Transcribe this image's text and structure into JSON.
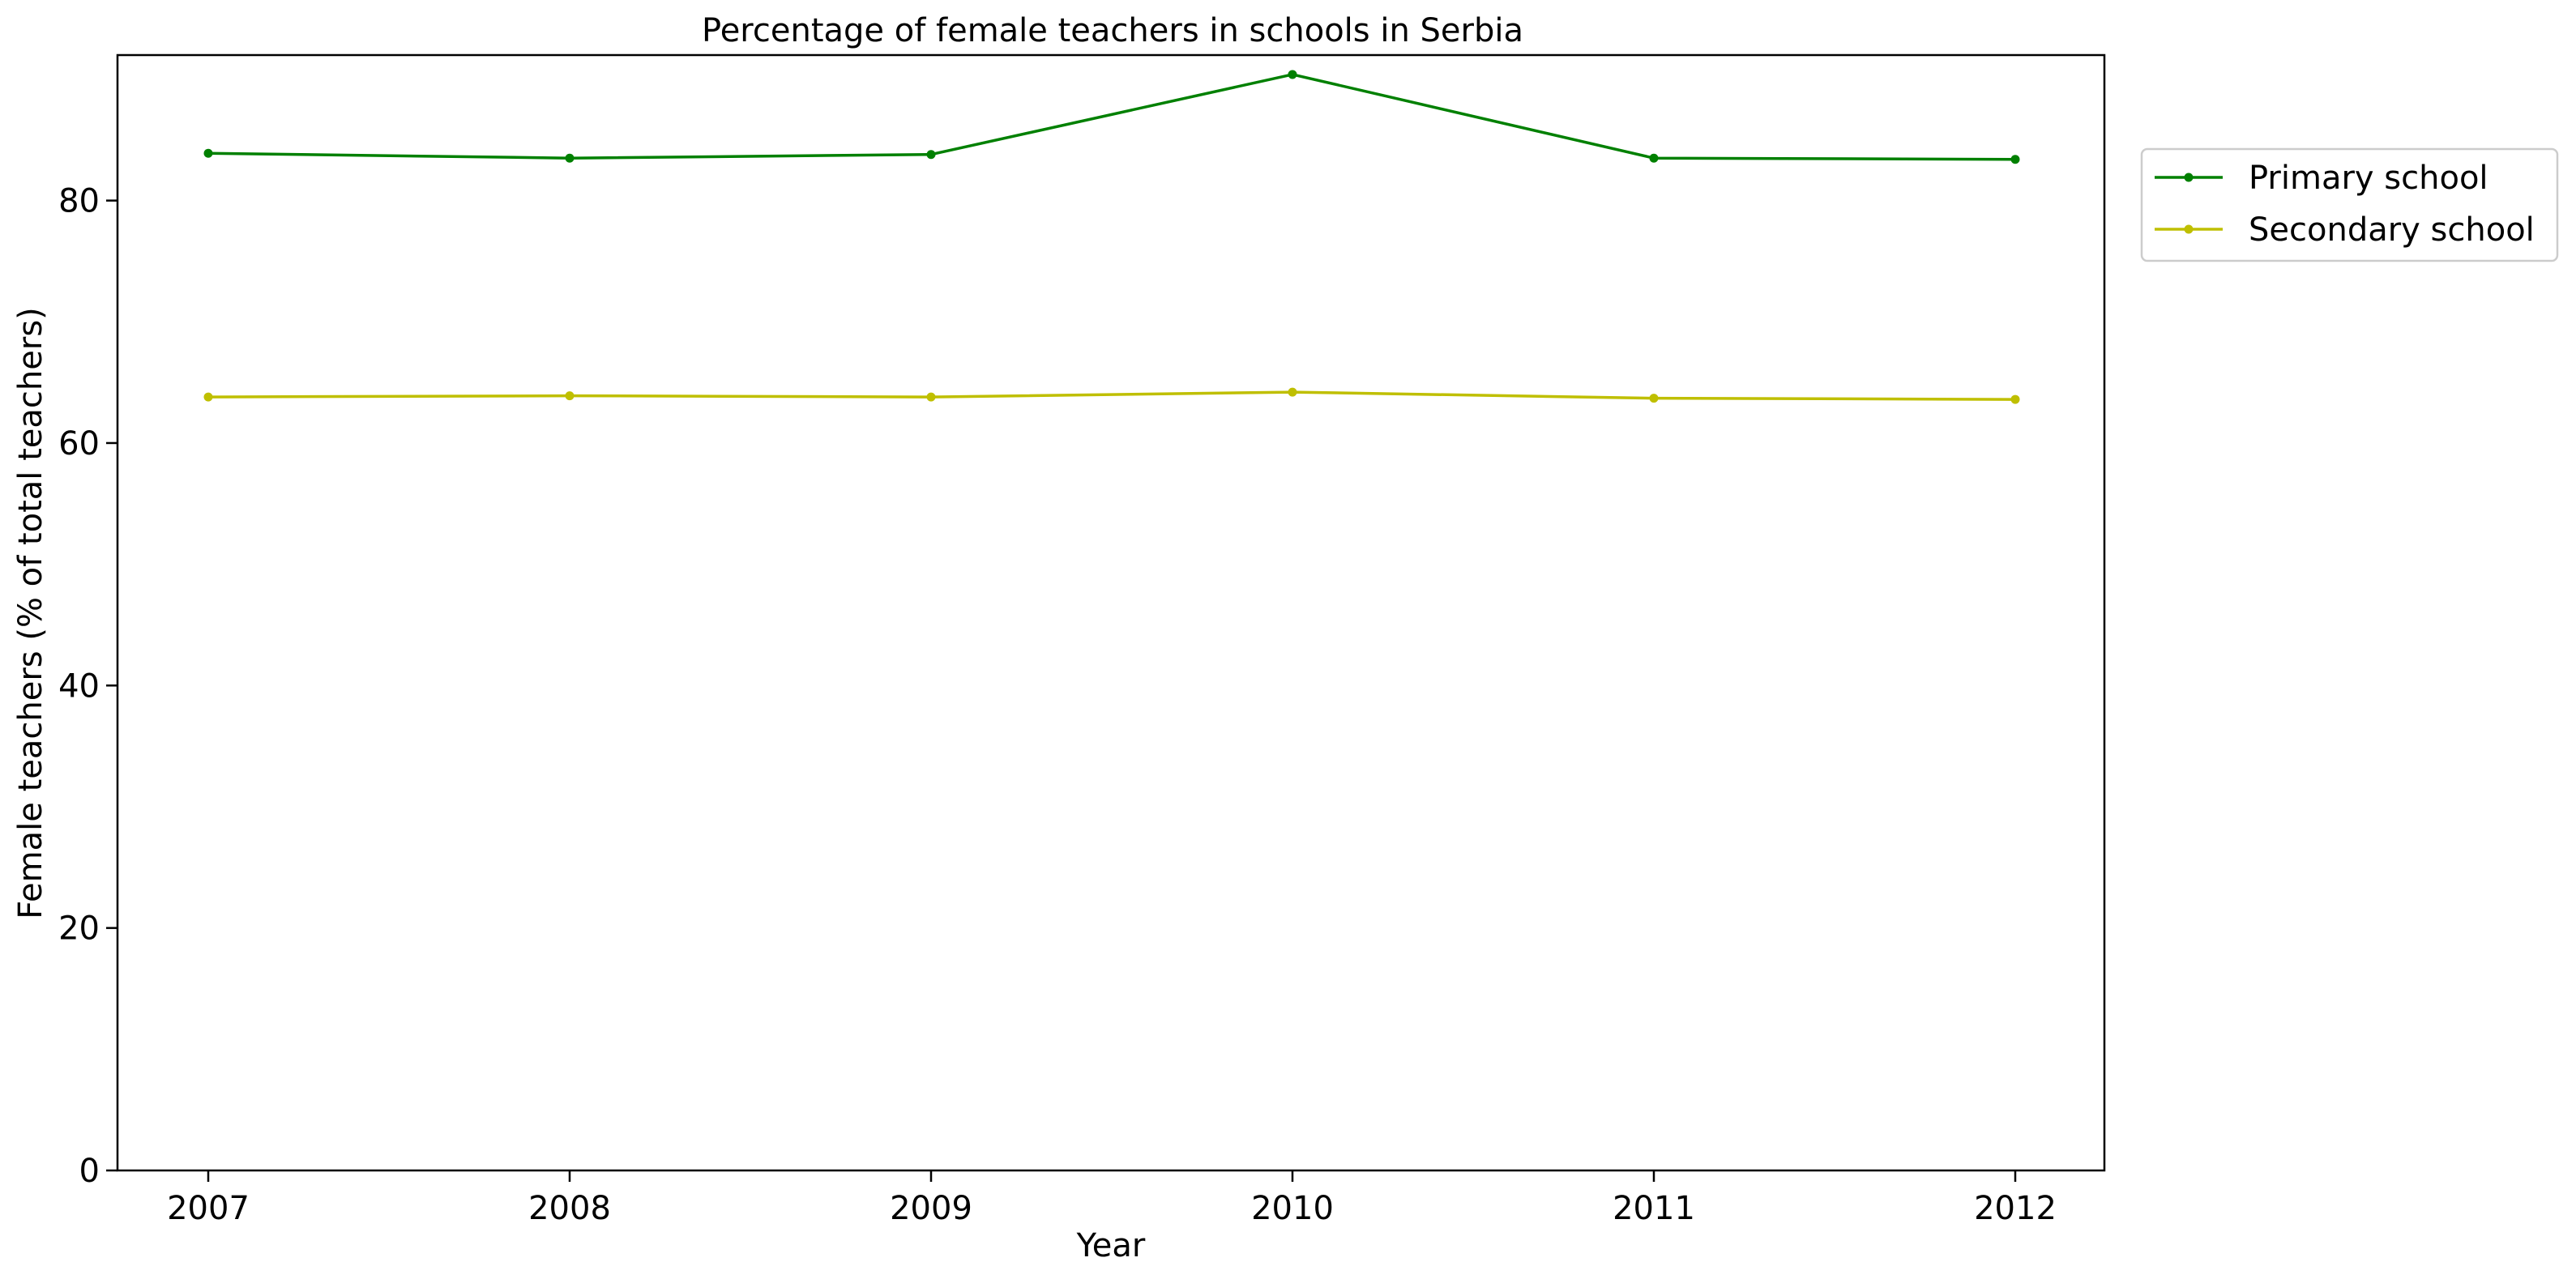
{
  "chart_data": {
    "type": "line",
    "title": "Percentage of female teachers in schools in Serbia",
    "xlabel": "Year",
    "ylabel": "Female teachers (% of total teachers)",
    "x": [
      "2007",
      "2008",
      "2009",
      "2010",
      "2011",
      "2012"
    ],
    "y_ticks": [
      "0",
      "20",
      "40",
      "60",
      "80"
    ],
    "ylim": [
      0,
      92
    ],
    "grid": false,
    "legend_position": "outside-top-right",
    "series": [
      {
        "name": "Primary school",
        "color": "#008000",
        "marker": "dot",
        "values": [
          83.9,
          83.5,
          83.8,
          90.4,
          83.5,
          83.4
        ]
      },
      {
        "name": "Secondary school",
        "color": "#bfbf00",
        "marker": "dot",
        "values": [
          63.8,
          63.9,
          63.8,
          64.2,
          63.7,
          63.6
        ]
      }
    ]
  }
}
